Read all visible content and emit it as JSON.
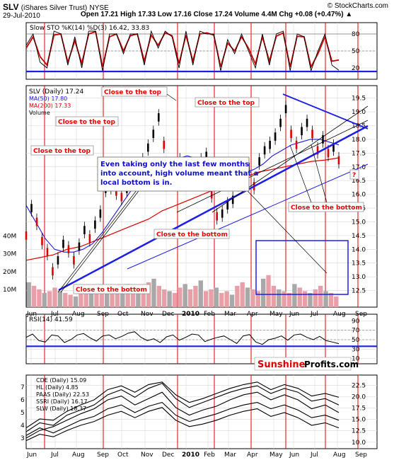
{
  "header": {
    "symbol": "SLV",
    "name": "(iShares Silver Trust)",
    "exchange": "NYSE",
    "copyright": "© StockCharts.com",
    "date": "29-Jul-2010",
    "ohlc": "Open 17.21  High 17.33  Low 17.16  Close 17.24  Volume 4.4M  Chg +0.08 (+0.47%) ▲"
  },
  "colors": {
    "background": "#ffffff",
    "panel_border": "#000000",
    "grid": "#d8d8d8",
    "price": "#000000",
    "ma50": "#1a1ad8",
    "ma200": "#dd0000",
    "red_vline": "#dd0000",
    "trend_blue": "#1e1ee6",
    "sto_k": "#000000",
    "sto_d": "#cc0000",
    "annotation_red": "#ee0000",
    "annotation_blue": "#1010cc",
    "volume_up": "#e8a0a8",
    "volume_down": "#a8a8a8"
  },
  "chart_data": [
    {
      "type": "line",
      "panel": "sto",
      "title": "Slow STO %K(14) %D(3) 16.42, 33.83",
      "y_ticks": [
        20,
        50,
        80
      ],
      "series": [
        {
          "name": "%K",
          "values": [
            60,
            80,
            30,
            20,
            85,
            80,
            25,
            75,
            20,
            85,
            85,
            15,
            80,
            80,
            45,
            80,
            80,
            25,
            85,
            55,
            85,
            75,
            20,
            85,
            25,
            85,
            80,
            80,
            15,
            70,
            45,
            80,
            50,
            20,
            80,
            25,
            80,
            85,
            15,
            80,
            75,
            15,
            50,
            80,
            25,
            16
          ]
        },
        {
          "name": "%D",
          "values": [
            55,
            75,
            40,
            25,
            78,
            80,
            30,
            68,
            28,
            80,
            84,
            22,
            75,
            80,
            50,
            77,
            80,
            32,
            78,
            60,
            82,
            77,
            28,
            78,
            32,
            80,
            82,
            78,
            22,
            64,
            50,
            75,
            55,
            27,
            75,
            32,
            76,
            82,
            22,
            76,
            75,
            22,
            45,
            75,
            32,
            34
          ]
        }
      ]
    },
    {
      "type": "line",
      "panel": "price",
      "title": "SLV (Daily) 17.24",
      "x_ticks": [
        "Jun",
        "Jul",
        "Aug",
        "Sep",
        "Oct",
        "Nov",
        "Dec",
        "2010",
        "Feb",
        "Mar",
        "Apr",
        "May",
        "Jun",
        "Jul",
        "Aug",
        "Sep"
      ],
      "y_ticks": [
        12.5,
        13.0,
        13.5,
        14.0,
        14.5,
        15.0,
        15.5,
        16.0,
        16.5,
        17.0,
        17.5,
        18.0,
        18.5,
        19.0,
        19.5
      ],
      "ylim": [
        12.0,
        19.8
      ],
      "series": [
        {
          "name": "SLV",
          "values": [
            14.5,
            15.5,
            15.0,
            14.3,
            13.9,
            13.2,
            13.6,
            14.2,
            14.0,
            13.6,
            14.1,
            14.7,
            14.4,
            14.9,
            15.3,
            16.2,
            16.3,
            16.1,
            15.9,
            16.2,
            16.8,
            16.7,
            17.2,
            17.7,
            18.2,
            18.8,
            17.8,
            16.6,
            16.8,
            17.2,
            16.9,
            16.6,
            16.9,
            17.2,
            17.4,
            16.0,
            15.2,
            15.3,
            15.6,
            15.8,
            16.4,
            16.8,
            17.0,
            16.3,
            17.2,
            17.6,
            17.8,
            18.1,
            18.6,
            19.1,
            18.2,
            17.8,
            18.3,
            18.6,
            18.2,
            17.6,
            18.0,
            17.5,
            17.7,
            17.24
          ]
        },
        {
          "name": "MA(50) 17.80",
          "values": [
            15.6,
            15.0,
            14.4,
            14.0,
            13.9,
            13.9,
            14.0,
            14.2,
            14.6,
            15.1,
            15.6,
            16.1,
            16.6,
            16.9,
            17.0,
            17.1,
            17.3,
            17.4,
            17.3,
            17.0,
            16.8,
            16.7,
            16.7,
            16.8,
            16.9,
            17.1,
            17.4,
            17.6,
            17.8,
            17.9,
            18.0,
            18.0,
            17.9,
            17.8
          ]
        },
        {
          "name": "MA(200) 17.33",
          "values": [
            13.6,
            13.7,
            13.8,
            14.0,
            14.1,
            14.3,
            14.5,
            14.7,
            14.9,
            15.1,
            15.4,
            15.6,
            15.8,
            16.0,
            16.2,
            16.4,
            16.6,
            16.8,
            16.9,
            17.0,
            17.1,
            17.2,
            17.25,
            17.33
          ]
        }
      ]
    },
    {
      "type": "bar",
      "panel": "volume",
      "title": "Volume",
      "y_ticks": [
        "10M",
        "20M",
        "30M",
        "40M"
      ],
      "values": [
        14,
        12,
        10,
        8,
        9,
        11,
        9,
        8,
        7,
        6,
        8,
        12,
        10,
        9,
        8,
        11,
        12,
        9,
        10,
        13,
        11,
        9,
        10,
        14,
        16,
        12,
        10,
        9,
        8,
        11,
        13,
        10,
        12,
        15,
        9,
        10,
        11,
        8,
        9,
        7,
        12,
        14,
        11,
        10,
        9,
        16,
        18,
        12,
        10,
        9,
        8,
        13,
        11,
        9,
        8,
        10,
        12,
        9,
        8,
        6
      ]
    },
    {
      "type": "line",
      "panel": "rsi",
      "title": "RSI(14) 41.59",
      "y_ticks": [
        10,
        30,
        50,
        70,
        90
      ],
      "values": [
        55,
        62,
        48,
        45,
        60,
        58,
        44,
        50,
        60,
        63,
        54,
        47,
        58,
        60,
        52,
        57,
        64,
        67,
        55,
        48,
        52,
        44,
        56,
        60,
        49,
        55,
        62,
        60,
        46,
        51,
        55,
        58,
        50,
        42,
        58,
        61,
        45,
        40,
        50,
        53,
        58,
        49,
        60,
        62,
        55,
        50,
        57,
        48,
        45,
        41.59
      ]
    },
    {
      "type": "line",
      "panel": "miners",
      "title": "",
      "y_ticks": [
        10.0,
        12.5,
        15.0,
        17.5,
        20.0,
        22.5
      ],
      "left_ticks": [
        3,
        4,
        5,
        6,
        7
      ],
      "series": [
        {
          "name": "CDE (Daily) 15.09",
          "values": [
            3.5,
            4.2,
            4.0,
            4.8,
            5.2,
            5.6,
            6.4,
            6.8,
            6.2,
            6.9,
            7.3,
            6.1,
            5.4,
            5.8,
            6.2,
            6.6,
            6.9,
            7.1,
            6.5,
            6.9,
            6.6,
            5.9,
            6.1,
            5.6
          ]
        },
        {
          "name": "HL (Daily) 4.85",
          "values": [
            3.0,
            3.6,
            3.9,
            4.4,
            4.9,
            5.3,
            6.0,
            6.3,
            5.6,
            6.1,
            6.6,
            5.4,
            4.8,
            5.2,
            5.5,
            6.0,
            6.4,
            6.6,
            6.0,
            6.4,
            6.0,
            5.3,
            5.6,
            5.0
          ]
        },
        {
          "name": "PAAS (Daily) 22.53",
          "values": [
            3.8,
            4.5,
            4.4,
            5.1,
            5.6,
            6.0,
            6.8,
            7.1,
            6.6,
            7.2,
            7.4,
            6.4,
            5.8,
            6.1,
            6.5,
            6.9,
            7.2,
            7.4,
            6.8,
            7.2,
            6.9,
            6.3,
            6.5,
            6.2
          ]
        },
        {
          "name": "SSRI (Daily) 16.17",
          "values": [
            3.2,
            3.8,
            3.4,
            3.9,
            4.4,
            4.7,
            5.3,
            5.6,
            5.0,
            5.5,
            5.8,
            4.8,
            4.3,
            4.6,
            4.9,
            5.3,
            5.6,
            5.8,
            5.3,
            5.6,
            5.2,
            4.6,
            4.8,
            4.4
          ]
        },
        {
          "name": "SLW (Daily) 18.37",
          "values": [
            2.8,
            3.3,
            3.1,
            3.6,
            4.0,
            4.3,
            4.8,
            5.1,
            4.6,
            5.1,
            5.4,
            4.4,
            3.9,
            4.1,
            4.4,
            4.8,
            5.1,
            5.3,
            4.7,
            5.0,
            4.6,
            4.0,
            4.2,
            3.8
          ]
        }
      ]
    }
  ],
  "annotations": {
    "red_labels": [
      "Close to the top",
      "Close to the top",
      "Close to the top",
      "Close to the top",
      "Close to the bottom",
      "Close to the bottom",
      "Close to the bottom",
      "?"
    ],
    "blue_note": "Even taking only the last few months into account, high volume meant that a local bottom is in.",
    "sto_value_label": "Slow STO %K(14) %D(3) 16.42, 33.83",
    "price_label": "SLV (Daily) 17.24",
    "ma50_label": "MA(50) 17.80",
    "ma200_label": "MA(200) 17.33",
    "volume_label": "Volume",
    "rsi_label": "RSI(14) 41.59",
    "brand_left": "Sunshine",
    "brand_right": "Profits.com"
  }
}
